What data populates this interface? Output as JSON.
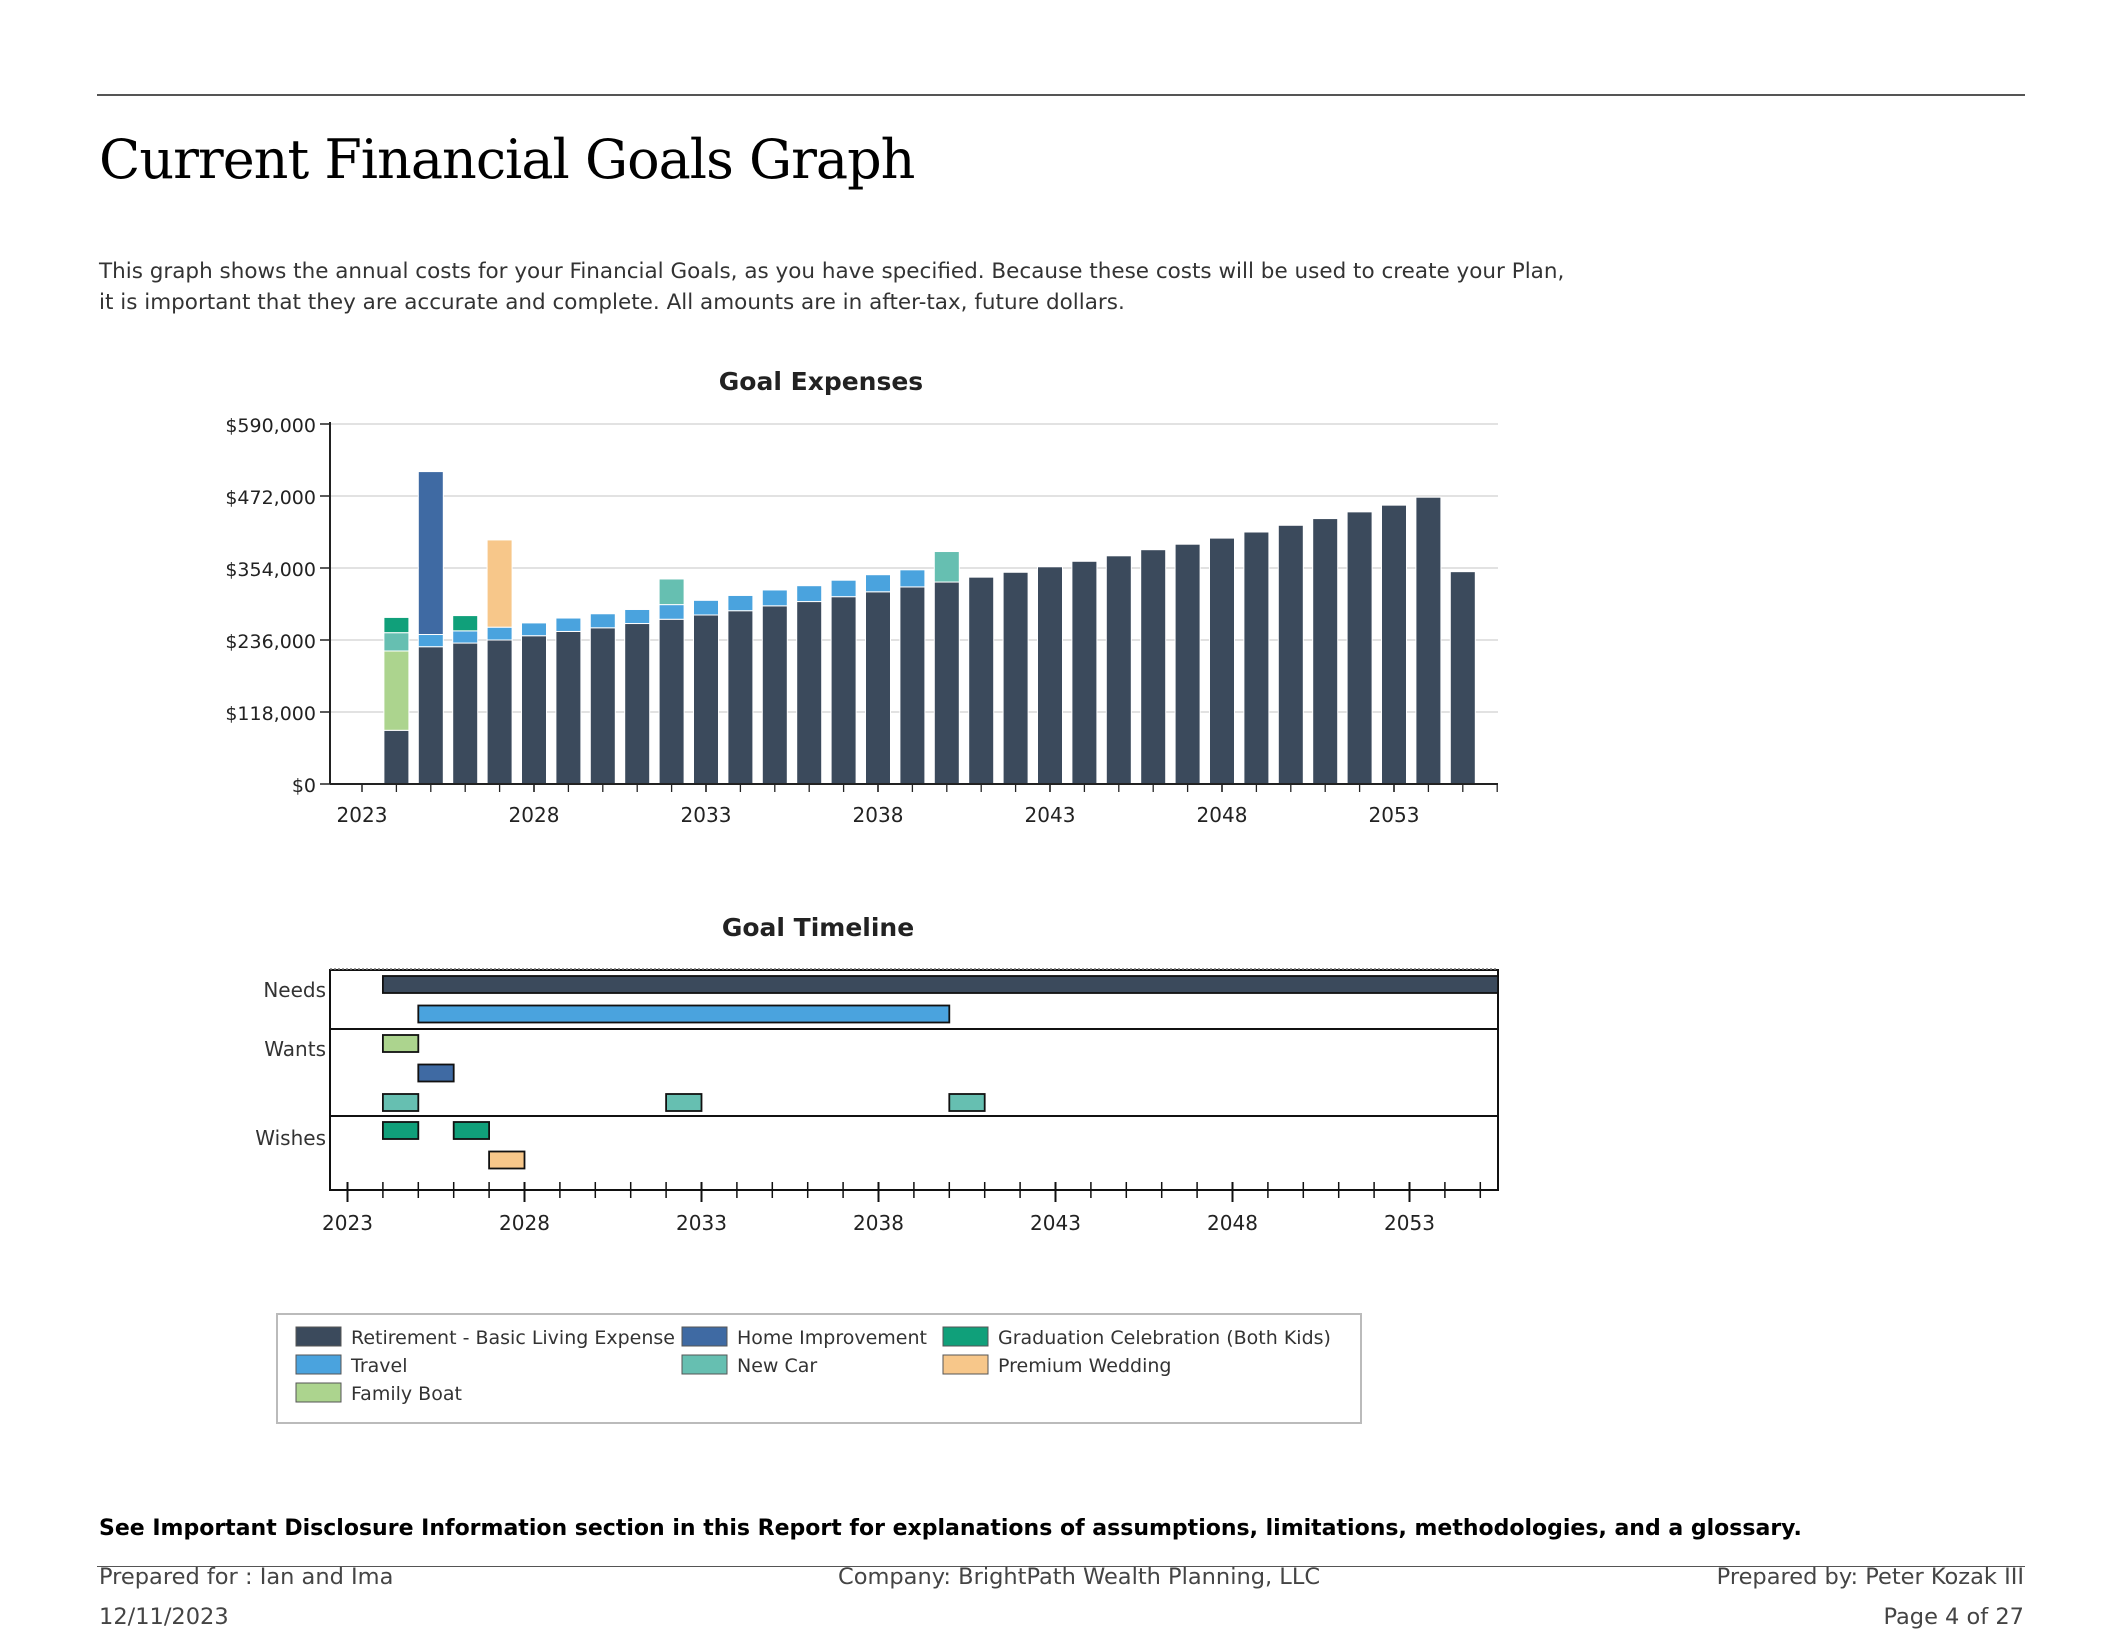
{
  "page": {
    "title": "Current Financial Goals Graph",
    "intro": "This graph shows the annual costs for your Financial Goals, as you have specified.  Because these costs will be used to create your Plan, it is important that they are accurate and complete. All amounts are in after-tax, future dollars."
  },
  "footer": {
    "disclosure": "See Important Disclosure Information section in this Report for explanations of assumptions, limitations, methodologies, and a glossary.",
    "prepared_for": "Prepared for : Ian and Ima",
    "date": "12/11/2023",
    "company": "Company: BrightPath Wealth Planning, LLC",
    "prepared_by": "Prepared by: Peter Kozak III",
    "page": "Page 4 of 27"
  },
  "colors": {
    "Retirement - Basic Living Expense": "#3b4a5c",
    "Travel": "#4aa3de",
    "Family Boat": "#acd48e",
    "Home Improvement": "#3f6aa3",
    "New Car": "#66bfb1",
    "Graduation Celebration (Both Kids)": "#10a07a",
    "Premium Wedding": "#f7c78a"
  },
  "chart_data": [
    {
      "type": "bar",
      "stacked": true,
      "title": "Goal Expenses",
      "xlabel": "",
      "ylabel": "",
      "ylim": [
        0,
        590000
      ],
      "y_ticks": [
        0,
        118000,
        236000,
        354000,
        472000,
        590000
      ],
      "y_tick_labels": [
        "$0",
        "$118,000",
        "$236,000",
        "$354,000",
        "$472,000",
        "$590,000"
      ],
      "x_ticks": [
        2023,
        2028,
        2033,
        2038,
        2043,
        2048,
        2053
      ],
      "x_tick_labels": [
        "2023",
        "2028",
        "2033",
        "2038",
        "2043",
        "2048",
        "2053"
      ],
      "grid": "horizontal",
      "categories": [
        2024,
        2025,
        2026,
        2027,
        2028,
        2029,
        2030,
        2031,
        2032,
        2033,
        2034,
        2035,
        2036,
        2037,
        2038,
        2039,
        2040,
        2041,
        2042,
        2043,
        2044,
        2045,
        2046,
        2047,
        2048,
        2049,
        2050,
        2051,
        2052,
        2053,
        2054,
        2055
      ],
      "series": [
        {
          "name": "Retirement - Basic Living Expense",
          "values": [
            88000,
            225000,
            231000,
            236000,
            243000,
            250000,
            256000,
            263000,
            270000,
            277000,
            284000,
            292000,
            299000,
            307000,
            315000,
            323000,
            331000,
            339000,
            347000,
            356000,
            365000,
            374000,
            384000,
            393000,
            403000,
            413000,
            424000,
            435000,
            446000,
            457000,
            470000,
            348000
          ]
        },
        {
          "name": "Travel",
          "values": [
            0,
            20000,
            20000,
            21000,
            21000,
            22000,
            23000,
            23000,
            24000,
            24000,
            25000,
            26000,
            26000,
            27000,
            28000,
            28000,
            0,
            0,
            0,
            0,
            0,
            0,
            0,
            0,
            0,
            0,
            0,
            0,
            0,
            0,
            0,
            0
          ]
        },
        {
          "name": "Family Boat",
          "values": [
            130000,
            0,
            0,
            0,
            0,
            0,
            0,
            0,
            0,
            0,
            0,
            0,
            0,
            0,
            0,
            0,
            0,
            0,
            0,
            0,
            0,
            0,
            0,
            0,
            0,
            0,
            0,
            0,
            0,
            0,
            0,
            0
          ]
        },
        {
          "name": "Home Improvement",
          "values": [
            0,
            267000,
            0,
            0,
            0,
            0,
            0,
            0,
            0,
            0,
            0,
            0,
            0,
            0,
            0,
            0,
            0,
            0,
            0,
            0,
            0,
            0,
            0,
            0,
            0,
            0,
            0,
            0,
            0,
            0,
            0,
            0
          ]
        },
        {
          "name": "New Car",
          "values": [
            30000,
            0,
            0,
            0,
            0,
            0,
            0,
            0,
            42000,
            0,
            0,
            0,
            0,
            0,
            0,
            0,
            50000,
            0,
            0,
            0,
            0,
            0,
            0,
            0,
            0,
            0,
            0,
            0,
            0,
            0,
            0,
            0
          ]
        },
        {
          "name": "Graduation Celebration (Both Kids)",
          "values": [
            25000,
            0,
            25000,
            0,
            0,
            0,
            0,
            0,
            0,
            0,
            0,
            0,
            0,
            0,
            0,
            0,
            0,
            0,
            0,
            0,
            0,
            0,
            0,
            0,
            0,
            0,
            0,
            0,
            0,
            0,
            0,
            0
          ]
        },
        {
          "name": "Premium Wedding",
          "values": [
            0,
            0,
            0,
            143000,
            0,
            0,
            0,
            0,
            0,
            0,
            0,
            0,
            0,
            0,
            0,
            0,
            0,
            0,
            0,
            0,
            0,
            0,
            0,
            0,
            0,
            0,
            0,
            0,
            0,
            0,
            0,
            0
          ]
        }
      ]
    },
    {
      "type": "timeline",
      "title": "Goal Timeline",
      "x_ticks": [
        2023,
        2028,
        2033,
        2038,
        2043,
        2048,
        2053
      ],
      "x_tick_labels": [
        "2023",
        "2028",
        "2033",
        "2038",
        "2043",
        "2048",
        "2053"
      ],
      "xlim": [
        2023,
        2055.7
      ],
      "groups": [
        {
          "label": "Needs",
          "rows": [
            [
              {
                "goal": "Retirement - Basic Living Expense",
                "start": 2024,
                "end": 2055.7
              }
            ],
            [
              {
                "goal": "Travel",
                "start": 2025,
                "end": 2040
              }
            ]
          ]
        },
        {
          "label": "Wants",
          "rows": [
            [
              {
                "goal": "Family Boat",
                "start": 2024,
                "end": 2025
              }
            ],
            [
              {
                "goal": "Home Improvement",
                "start": 2025,
                "end": 2026
              }
            ],
            [
              {
                "goal": "New Car",
                "start": 2024,
                "end": 2025
              },
              {
                "goal": "New Car",
                "start": 2032,
                "end": 2033
              },
              {
                "goal": "New Car",
                "start": 2040,
                "end": 2041
              }
            ]
          ]
        },
        {
          "label": "Wishes",
          "rows": [
            [
              {
                "goal": "Graduation Celebration (Both Kids)",
                "start": 2024,
                "end": 2025
              },
              {
                "goal": "Graduation Celebration (Both Kids)",
                "start": 2026,
                "end": 2027
              }
            ],
            [
              {
                "goal": "Premium Wedding",
                "start": 2027,
                "end": 2028
              }
            ]
          ]
        }
      ]
    }
  ],
  "legend": [
    "Retirement - Basic Living Expense",
    "Travel",
    "Family Boat",
    "Home Improvement",
    "New Car",
    "Graduation Celebration (Both Kids)",
    "Premium Wedding"
  ]
}
